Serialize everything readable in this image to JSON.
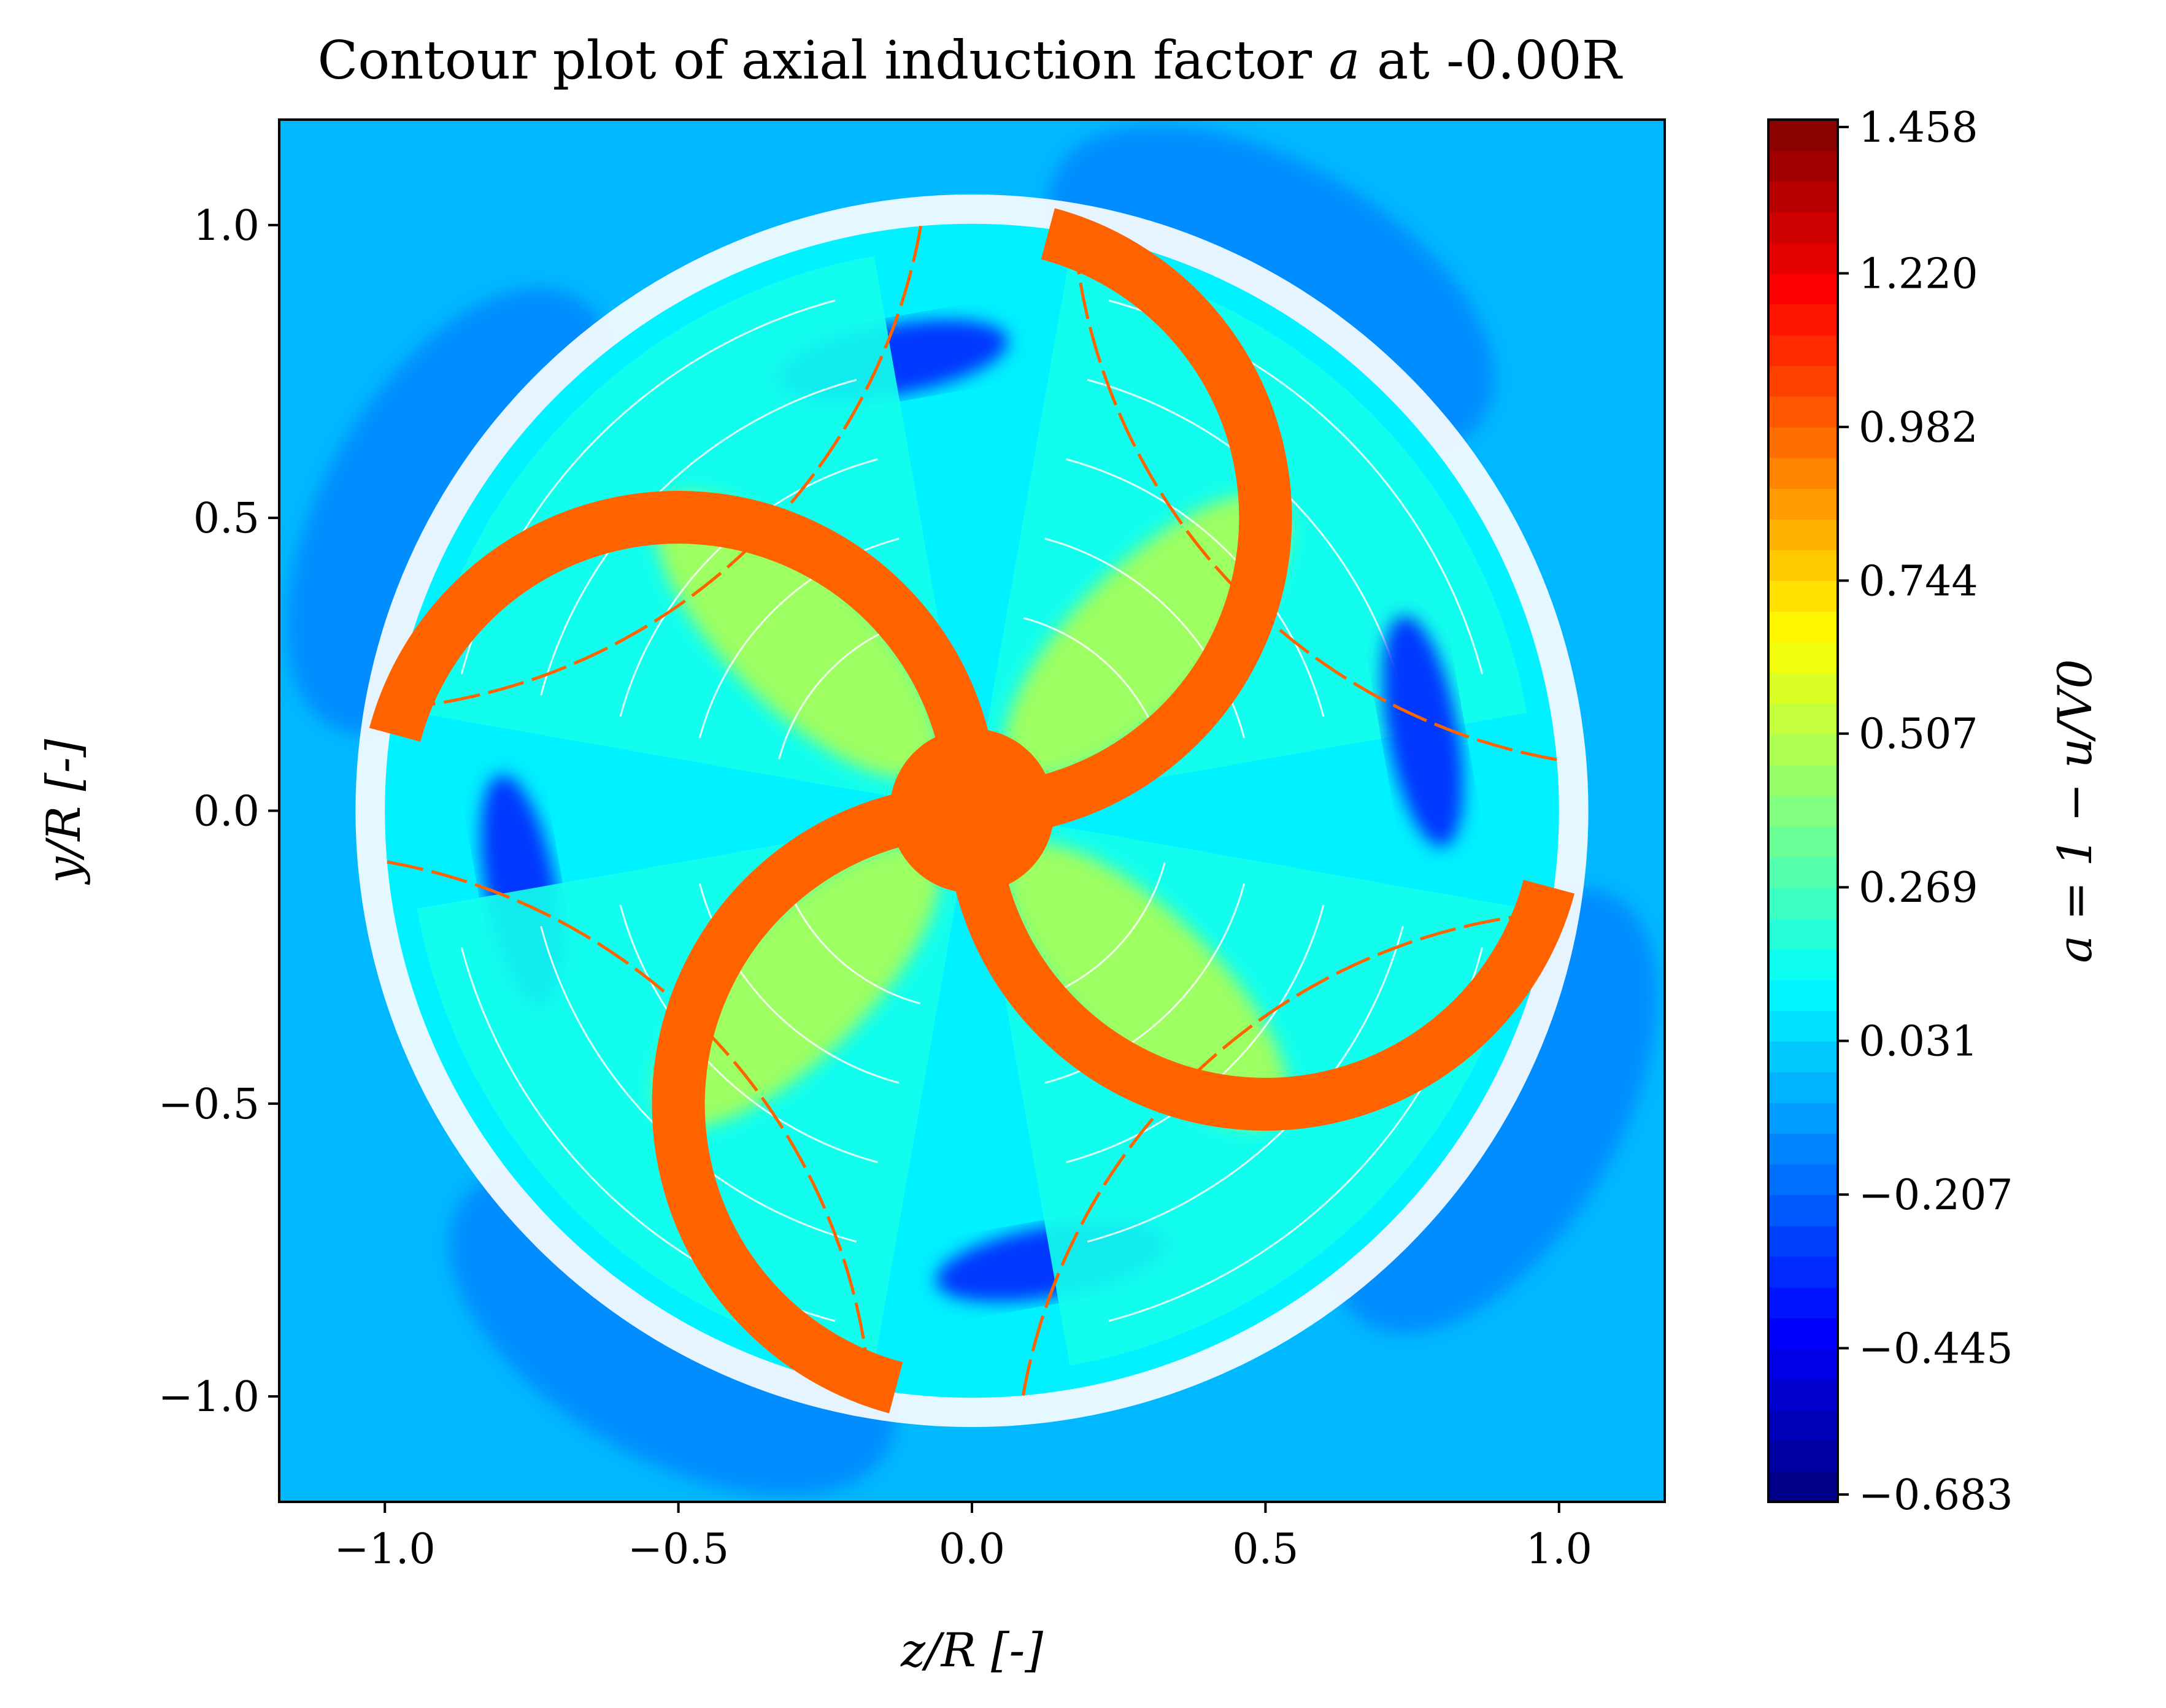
{
  "chart_data": {
    "type": "heatmap",
    "title": "Contour plot of axial induction factor a at -0.00R",
    "title_parts": {
      "prefix": "Contour plot of axial induction factor ",
      "var": "a",
      "suffix": " at -0.00R"
    },
    "xlabel": "z/R [-]",
    "ylabel": "y/R [-]",
    "xlim": [
      -1.18,
      1.18
    ],
    "ylim": [
      -1.18,
      1.18
    ],
    "x_ticks": [
      -1.0,
      -0.5,
      0.0,
      0.5,
      1.0
    ],
    "y_ticks": [
      -1.0,
      -0.5,
      0.0,
      0.5,
      1.0
    ],
    "x_tick_labels": [
      "−1.0",
      "−0.5",
      "0.0",
      "0.5",
      "1.0"
    ],
    "y_tick_labels": [
      "−1.0",
      "−0.5",
      "0.0",
      "0.5",
      "1.0"
    ],
    "grid": false,
    "colormap": "jet",
    "colorbar": {
      "label": "a = 1 − u/V0",
      "range": [
        -0.683,
        1.458
      ],
      "ticks": [
        -0.683,
        -0.445,
        -0.207,
        0.031,
        0.269,
        0.507,
        0.744,
        0.982,
        1.22,
        1.458
      ],
      "tick_labels": [
        "−0.683",
        "−0.445",
        "−0.207",
        "0.031",
        "0.269",
        "0.507",
        "0.744",
        "0.982",
        "1.220",
        "1.458"
      ],
      "levels": 45
    },
    "background_value": 0.031,
    "blade_value": 0.982,
    "n_blades": 4,
    "blade_arc_radius": 0.5,
    "hub_radius": 0.14,
    "rotor_radius": 1.0
  }
}
